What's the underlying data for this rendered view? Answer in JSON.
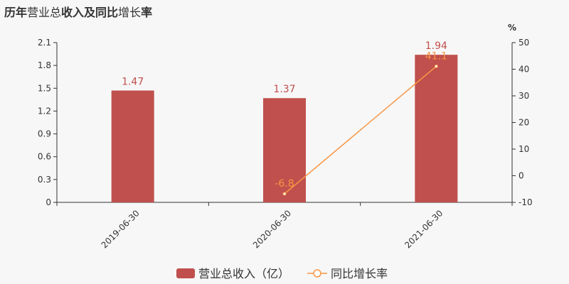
{
  "title": {
    "parts": [
      {
        "text": "历年",
        "bold": true
      },
      {
        "text": "营业总",
        "bold": false
      },
      {
        "text": "收入及同比",
        "bold": true
      },
      {
        "text": "增长",
        "bold": false
      },
      {
        "text": "率",
        "bold": true
      }
    ]
  },
  "colors": {
    "bar": "#c0504d",
    "line": "#f79646",
    "bar_label": "#c0504d",
    "line_label": "#f79646",
    "axis": "#333333"
  },
  "chart_data": {
    "type": "bar+line",
    "categories": [
      "2019-06-30",
      "2020-06-30",
      "2021-06-30"
    ],
    "series": [
      {
        "name": "营业总收入（亿）",
        "type": "bar",
        "axis": "left",
        "values": [
          1.47,
          1.37,
          1.94
        ],
        "labels": [
          "1.47",
          "1.37",
          "1.94"
        ]
      },
      {
        "name": "同比增长率",
        "type": "line",
        "axis": "right",
        "values": [
          null,
          -6.8,
          41.1
        ],
        "labels": [
          "",
          "-6.8",
          "41.1"
        ]
      }
    ],
    "y_left": {
      "min": 0,
      "max": 2.1,
      "ticks": [
        "0",
        "0.3",
        "0.6",
        "0.9",
        "1.2",
        "1.5",
        "1.8",
        "2.1"
      ]
    },
    "y_right": {
      "min": -10,
      "max": 50,
      "unit": "%",
      "ticks": [
        "-10",
        "0",
        "10",
        "20",
        "30",
        "40",
        "50"
      ]
    },
    "legend_position": "bottom-center",
    "grid": false
  },
  "legend": {
    "bar_label": "营业总收入（亿）",
    "line_label": "同比增长率"
  }
}
